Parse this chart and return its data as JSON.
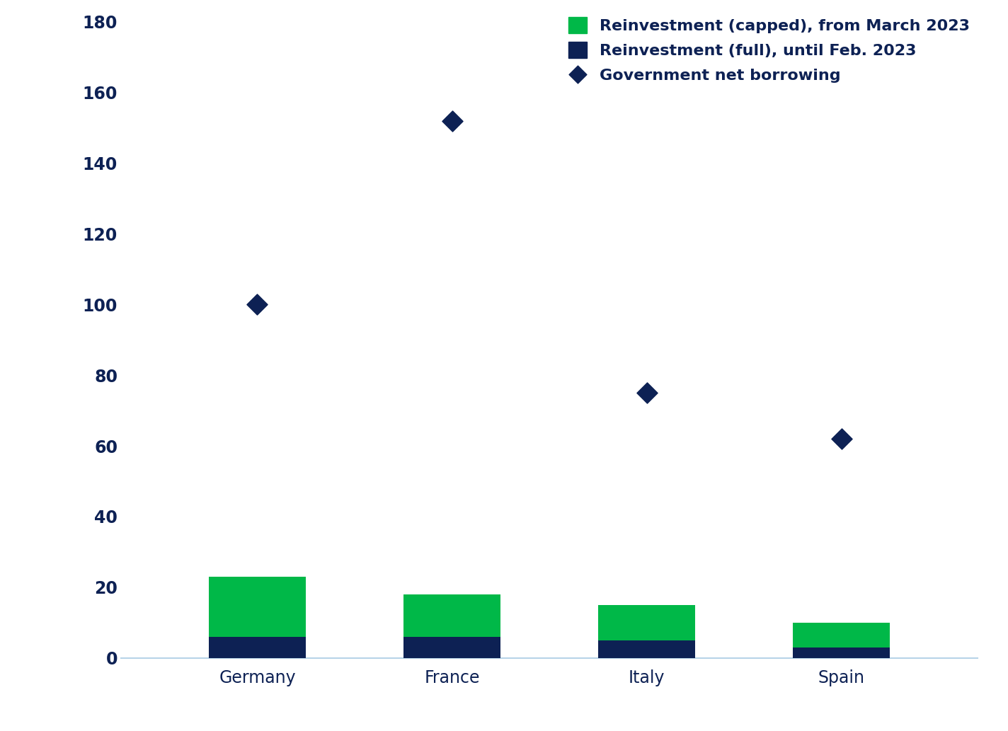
{
  "categories": [
    "Germany",
    "France",
    "Italy",
    "Spain"
  ],
  "reinvestment_full": [
    6,
    6,
    5,
    3
  ],
  "reinvestment_capped": [
    17,
    12,
    10,
    7
  ],
  "gov_net_borrowing": [
    100,
    152,
    75,
    62
  ],
  "color_full": "#0d2154",
  "color_capped": "#00b848",
  "color_diamond": "#0d2154",
  "ylim": [
    0,
    180
  ],
  "yticks": [
    0,
    20,
    40,
    60,
    80,
    100,
    120,
    140,
    160,
    180
  ],
  "bar_width": 0.5,
  "legend_labels": [
    "Reinvestment (capped), from March 2023",
    "Reinvestment (full), until Feb. 2023",
    "Government net borrowing"
  ],
  "tick_label_color": "#0d2154",
  "background_color": "#ffffff",
  "legend_fontsize": 16,
  "tick_fontsize": 17,
  "category_fontsize": 17,
  "spine_color": "#b8d4e8",
  "grid_color": "#e8f0f8"
}
